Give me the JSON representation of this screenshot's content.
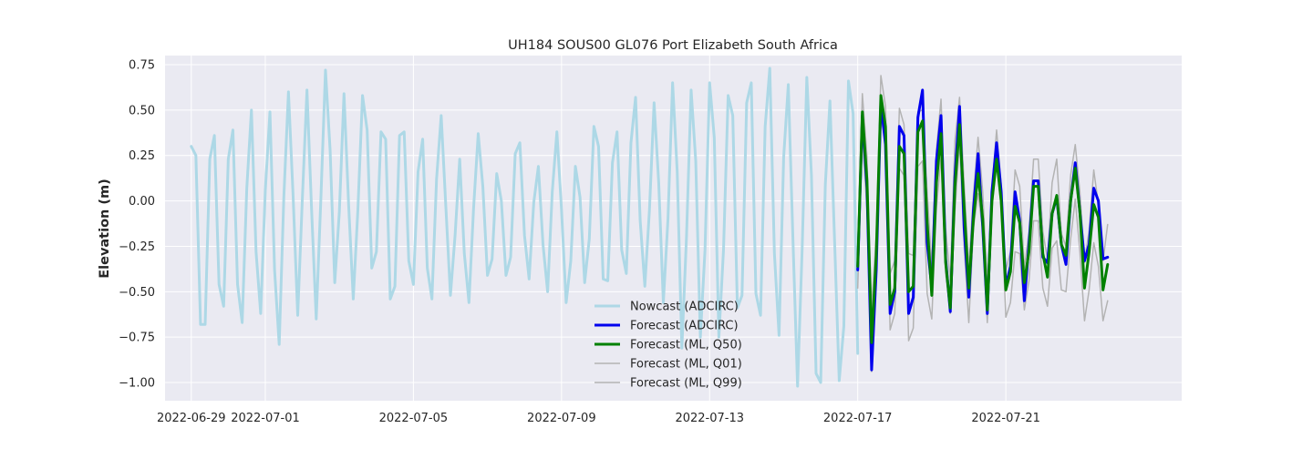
{
  "chart_data": {
    "type": "line",
    "title": "UH184 SOUS00 GL076 Port Elizabeth South Africa",
    "xlabel": "",
    "ylabel": "Elevation (m)",
    "xlim": [
      "2022-06-28T07:00",
      "2022-07-25T18:00"
    ],
    "ylim": [
      -1.1,
      0.8
    ],
    "grid": true,
    "legend_position": "lower-center",
    "x_ticks": [
      "2022-06-29",
      "2022-07-01",
      "2022-07-05",
      "2022-07-09",
      "2022-07-13",
      "2022-07-17",
      "2022-07-21"
    ],
    "y_ticks": [
      {
        "value": 0.75,
        "label": "0.75"
      },
      {
        "value": 0.5,
        "label": "0.50"
      },
      {
        "value": 0.25,
        "label": "0.25"
      },
      {
        "value": 0.0,
        "label": "0.00"
      },
      {
        "value": -0.25,
        "label": "−0.25"
      },
      {
        "value": -0.5,
        "label": "−0.50"
      },
      {
        "value": -0.75,
        "label": "−0.75"
      },
      {
        "value": -1.0,
        "label": "−1.00"
      }
    ],
    "series": [
      {
        "name": "Nowcast (ADCIRC)",
        "color": "#add8e6",
        "width": 3,
        "start": "2022-06-29T00:00",
        "step_hours": 3,
        "values": [
          0.3,
          0.25,
          -0.68,
          -0.68,
          0.23,
          0.36,
          -0.46,
          -0.58,
          0.23,
          0.39,
          -0.46,
          -0.67,
          0.07,
          0.5,
          -0.28,
          -0.62,
          0.06,
          0.49,
          -0.38,
          -0.79,
          0.02,
          0.6,
          0.03,
          -0.63,
          0.01,
          0.61,
          -0.05,
          -0.65,
          0.01,
          0.72,
          0.28,
          -0.45,
          -0.06,
          0.59,
          -0.02,
          -0.54,
          -0.05,
          0.58,
          0.39,
          -0.37,
          -0.28,
          0.38,
          0.34,
          -0.54,
          -0.47,
          0.36,
          0.38,
          -0.33,
          -0.46,
          0.16,
          0.34,
          -0.37,
          -0.54,
          0.12,
          0.47,
          -0.03,
          -0.52,
          -0.19,
          0.23,
          -0.29,
          -0.56,
          -0.04,
          0.37,
          0.08,
          -0.41,
          -0.32,
          0.15,
          0.0,
          -0.41,
          -0.31,
          0.26,
          0.32,
          -0.19,
          -0.43,
          -0.01,
          0.19,
          -0.24,
          -0.5,
          0.05,
          0.38,
          -0.05,
          -0.56,
          -0.33,
          0.19,
          0.02,
          -0.45,
          -0.21,
          0.41,
          0.3,
          -0.43,
          -0.44,
          0.21,
          0.38,
          -0.27,
          -0.4,
          0.32,
          0.57,
          -0.11,
          -0.47,
          -0.05,
          0.54,
          0.1,
          -0.56,
          -0.1,
          0.65,
          0.16,
          -0.81,
          -0.2,
          0.61,
          0.22,
          -0.75,
          -0.27,
          0.65,
          0.35,
          -0.75,
          -0.27,
          0.58,
          0.47,
          -0.59,
          -0.52,
          0.54,
          0.65,
          -0.51,
          -0.63,
          0.41,
          0.73,
          -0.29,
          -0.74,
          0.24,
          0.64,
          -0.21,
          -1.02,
          -0.26,
          0.68,
          0.14,
          -0.95,
          -1.0,
          0.09,
          0.55,
          -0.22,
          -0.99,
          -0.69,
          0.66,
          0.48,
          -0.84
        ]
      },
      {
        "name": "Forecast (ADCIRC)",
        "color": "#0000ee",
        "width": 3,
        "start": "2022-07-17T00:00",
        "step_hours": 3,
        "values": [
          -0.38,
          0.47,
          0.07,
          -0.93,
          -0.38,
          0.54,
          0.31,
          -0.62,
          -0.5,
          0.41,
          0.36,
          -0.62,
          -0.53,
          0.46,
          0.61,
          -0.23,
          -0.48,
          0.22,
          0.47,
          -0.32,
          -0.61,
          0.13,
          0.52,
          -0.15,
          -0.53,
          -0.05,
          0.26,
          -0.14,
          -0.62,
          0.05,
          0.32,
          0.05,
          -0.47,
          -0.36,
          0.05,
          -0.11,
          -0.55,
          -0.24,
          0.11,
          0.11,
          -0.31,
          -0.34,
          -0.07,
          0.02,
          -0.24,
          -0.35,
          0.0,
          0.21,
          -0.06,
          -0.33,
          -0.24,
          0.07,
          0.0,
          -0.32,
          -0.31
        ]
      },
      {
        "name": "Forecast (ML, Q50)",
        "color": "#008000",
        "width": 3,
        "start": "2022-07-17T00:00",
        "step_hours": 3,
        "values": [
          -0.36,
          0.49,
          0.11,
          -0.78,
          -0.3,
          0.58,
          0.41,
          -0.57,
          -0.48,
          0.3,
          0.26,
          -0.5,
          -0.47,
          0.38,
          0.44,
          -0.12,
          -0.52,
          0.1,
          0.37,
          -0.34,
          -0.59,
          0.08,
          0.42,
          -0.04,
          -0.48,
          -0.1,
          0.15,
          -0.1,
          -0.6,
          0.0,
          0.23,
          0.0,
          -0.49,
          -0.39,
          -0.03,
          -0.12,
          -0.45,
          -0.28,
          0.08,
          0.08,
          -0.29,
          -0.42,
          -0.07,
          0.03,
          -0.24,
          -0.3,
          0.0,
          0.18,
          -0.06,
          -0.48,
          -0.28,
          -0.02,
          -0.09,
          -0.49,
          -0.35
        ]
      },
      {
        "name": "Forecast (ML, Q01)",
        "color": "#b3b3b3",
        "width": 1.5,
        "start": "2022-07-17T00:00",
        "step_hours": 3,
        "values": [
          -0.48,
          0.36,
          -0.05,
          -0.94,
          -0.43,
          0.46,
          0.32,
          -0.71,
          -0.62,
          0.18,
          0.14,
          -0.77,
          -0.7,
          0.19,
          0.22,
          -0.51,
          -0.65,
          -0.04,
          0.24,
          -0.4,
          -0.62,
          -0.06,
          0.33,
          -0.25,
          -0.67,
          -0.15,
          0.04,
          -0.16,
          -0.67,
          -0.05,
          0.23,
          -0.04,
          -0.64,
          -0.56,
          -0.28,
          -0.29,
          -0.6,
          -0.44,
          -0.11,
          -0.11,
          -0.48,
          -0.58,
          -0.26,
          -0.22,
          -0.49,
          -0.5,
          -0.21,
          0.01,
          -0.28,
          -0.66,
          -0.49,
          -0.23,
          -0.36,
          -0.66,
          -0.55
        ]
      },
      {
        "name": "Forecast (ML, Q99)",
        "color": "#b3b3b3",
        "width": 1.5,
        "start": "2022-07-17T00:00",
        "step_hours": 3,
        "values": [
          -0.3,
          0.59,
          0.24,
          -0.6,
          -0.18,
          0.69,
          0.52,
          -0.4,
          -0.33,
          0.51,
          0.42,
          -0.29,
          -0.3,
          0.49,
          0.5,
          0.05,
          -0.36,
          0.28,
          0.56,
          -0.15,
          -0.44,
          0.33,
          0.57,
          0.09,
          -0.37,
          0.03,
          0.35,
          0.05,
          -0.46,
          0.07,
          0.39,
          0.09,
          -0.38,
          -0.28,
          0.17,
          0.08,
          -0.37,
          -0.17,
          0.23,
          0.23,
          -0.17,
          -0.32,
          0.1,
          0.23,
          -0.18,
          -0.25,
          0.14,
          0.31,
          0.05,
          -0.34,
          -0.16,
          0.17,
          -0.02,
          -0.33,
          -0.13
        ]
      }
    ]
  }
}
